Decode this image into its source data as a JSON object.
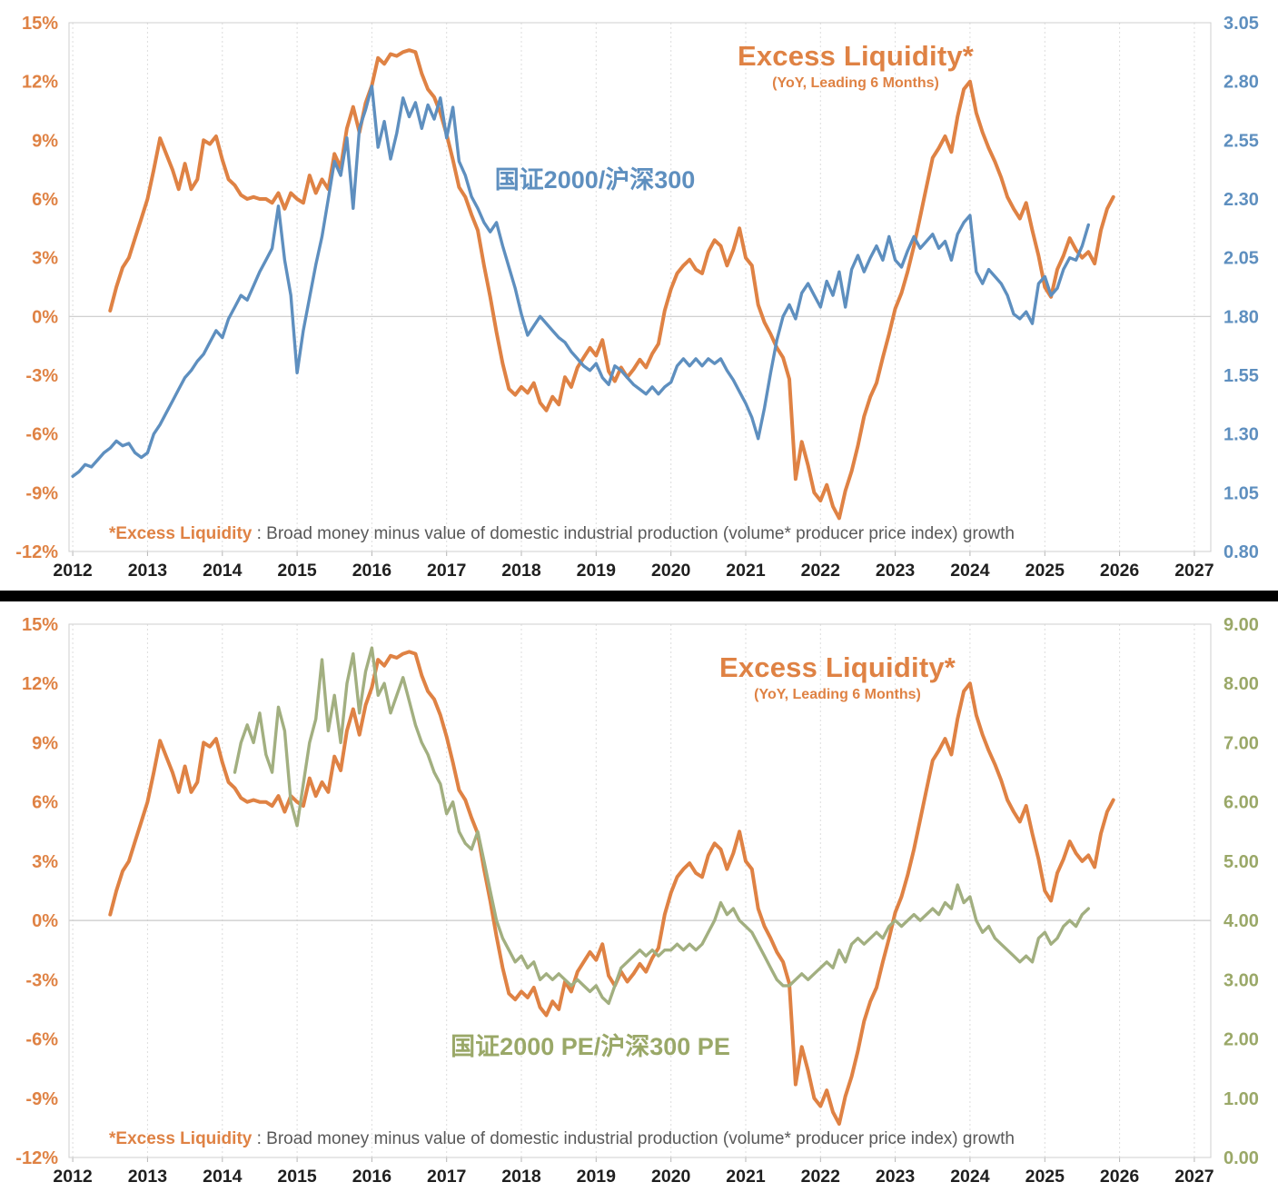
{
  "page": {
    "background": "#ffffff",
    "divider_color": "#000000"
  },
  "colors": {
    "excess_liquidity": "#DF8244",
    "price_ratio": "#5E8FBF",
    "pe_ratio": "#9AA868",
    "x_label": "#1F1F1F",
    "footnote_text": "#595959",
    "grid": "#DCDCDC"
  },
  "charts": [
    {
      "id": "price-ratio-chart",
      "title": "Excess Liquidity*",
      "subtitle": "(YoY, Leading 6 Months)",
      "series_label": "国证2000/沪深300",
      "footnote_highlight": "*Excess Liquidity",
      "footnote_text": " : Broad money minus value of domestic industrial production (volume* producer price index) growth",
      "left_ticks": [
        "15%",
        "12%",
        "9%",
        "6%",
        "3%",
        "0%",
        "-3%",
        "-6%",
        "-9%",
        "-12%"
      ],
      "right_ticks": [
        "3.05",
        "2.80",
        "2.55",
        "2.30",
        "2.05",
        "1.80",
        "1.55",
        "1.30",
        "1.05",
        "0.80"
      ],
      "x_ticks": [
        "2012",
        "2013",
        "2014",
        "2015",
        "2016",
        "2017",
        "2018",
        "2019",
        "2020",
        "2021",
        "2022",
        "2023",
        "2024",
        "2025",
        "2026",
        "2027"
      ]
    },
    {
      "id": "pe-ratio-chart",
      "title": "Excess Liquidity*",
      "subtitle": "(YoY, Leading 6 Months)",
      "series_label": "国证2000 PE/沪深300 PE",
      "footnote_highlight": "*Excess Liquidity",
      "footnote_text": " : Broad money minus value of domestic industrial production (volume* producer price index) growth",
      "left_ticks": [
        "15%",
        "12%",
        "9%",
        "6%",
        "3%",
        "0%",
        "-3%",
        "-6%",
        "-9%",
        "-12%"
      ],
      "right_ticks": [
        "9.00",
        "8.00",
        "7.00",
        "6.00",
        "5.00",
        "4.00",
        "3.00",
        "2.00",
        "1.00",
        "0.00"
      ],
      "x_ticks": [
        "2012",
        "2013",
        "2014",
        "2015",
        "2016",
        "2017",
        "2018",
        "2019",
        "2020",
        "2021",
        "2022",
        "2023",
        "2024",
        "2025",
        "2026",
        "2027"
      ]
    }
  ],
  "chart_data": [
    {
      "type": "line",
      "title": "Excess Liquidity* (YoY, Leading 6 Months) vs 国证2000/沪深300",
      "x_range": [
        2012,
        2027
      ],
      "left_axis": {
        "min": -12,
        "max": 15,
        "tick_step": 3,
        "unit": "%",
        "color": "#DF8244"
      },
      "right_axis": {
        "min": 0.8,
        "max": 3.05,
        "tick_step": 0.25,
        "color": "#5E8FBF"
      },
      "grid": "vertical-yearly-dashed",
      "legend_position": "inline-annotations",
      "series": [
        {
          "name": "Excess Liquidity* (YoY, Leading 6 Months)",
          "key": "excess-liquidity-line",
          "axis": "left",
          "color": "#DF8244",
          "x_start": 2012.5,
          "x_step_years": 0.0833333,
          "values": [
            0.3,
            1.5,
            2.5,
            3.0,
            4.0,
            5.0,
            6.0,
            7.5,
            9.1,
            8.3,
            7.5,
            6.5,
            7.8,
            6.5,
            7.0,
            9.0,
            8.8,
            9.2,
            8.0,
            7.0,
            6.7,
            6.2,
            6.0,
            6.1,
            6.0,
            6.0,
            5.8,
            6.3,
            5.5,
            6.3,
            6.0,
            5.8,
            7.2,
            6.3,
            7.0,
            6.5,
            8.3,
            7.6,
            9.6,
            10.7,
            9.4,
            10.9,
            11.8,
            13.2,
            12.9,
            13.4,
            13.3,
            13.5,
            13.6,
            13.5,
            12.4,
            11.6,
            11.2,
            10.4,
            9.3,
            8.0,
            6.6,
            6.1,
            5.2,
            4.4,
            2.6,
            1.0,
            -0.8,
            -2.4,
            -3.7,
            -4.0,
            -3.6,
            -3.9,
            -3.4,
            -4.4,
            -4.8,
            -4.1,
            -4.5,
            -3.1,
            -3.6,
            -2.6,
            -2.1,
            -1.6,
            -2.0,
            -1.2,
            -2.8,
            -3.3,
            -2.6,
            -3.1,
            -2.7,
            -2.2,
            -2.6,
            -1.9,
            -1.4,
            0.3,
            1.4,
            2.2,
            2.6,
            2.9,
            2.4,
            2.2,
            3.3,
            3.9,
            3.6,
            2.6,
            3.4,
            4.5,
            3.0,
            2.6,
            0.6,
            -0.3,
            -0.9,
            -1.6,
            -2.1,
            -3.2,
            -8.3,
            -6.4,
            -7.6,
            -9.0,
            -9.4,
            -8.6,
            -9.7,
            -10.3,
            -8.9,
            -7.9,
            -6.6,
            -5.1,
            -4.1,
            -3.4,
            -2.1,
            -0.9,
            0.4,
            1.2,
            2.3,
            3.6,
            5.1,
            6.6,
            8.1,
            8.6,
            9.2,
            8.4,
            10.2,
            11.6,
            12.0,
            10.4,
            9.4,
            8.6,
            7.9,
            7.1,
            6.1,
            5.5,
            5.0,
            5.8,
            4.4,
            3.1,
            1.5,
            1.0,
            2.4,
            3.1,
            4.0,
            3.4,
            3.0,
            3.3,
            2.7,
            4.4,
            5.5,
            6.1
          ]
        },
        {
          "name": "国证2000/沪深300",
          "key": "price-ratio-line",
          "axis": "right",
          "color": "#5E8FBF",
          "x_start": 2012.0,
          "x_step_years": 0.0833333,
          "values": [
            1.12,
            1.14,
            1.17,
            1.16,
            1.19,
            1.22,
            1.24,
            1.27,
            1.25,
            1.26,
            1.22,
            1.2,
            1.22,
            1.3,
            1.34,
            1.39,
            1.44,
            1.49,
            1.54,
            1.57,
            1.61,
            1.64,
            1.69,
            1.74,
            1.71,
            1.79,
            1.84,
            1.89,
            1.87,
            1.93,
            1.99,
            2.04,
            2.09,
            2.27,
            2.04,
            1.89,
            1.56,
            1.74,
            1.88,
            2.02,
            2.14,
            2.3,
            2.46,
            2.4,
            2.56,
            2.26,
            2.6,
            2.68,
            2.78,
            2.52,
            2.63,
            2.47,
            2.58,
            2.73,
            2.65,
            2.71,
            2.6,
            2.7,
            2.64,
            2.73,
            2.56,
            2.69,
            2.46,
            2.4,
            2.31,
            2.26,
            2.2,
            2.16,
            2.2,
            2.1,
            2.01,
            1.92,
            1.81,
            1.72,
            1.76,
            1.8,
            1.77,
            1.74,
            1.71,
            1.69,
            1.65,
            1.62,
            1.59,
            1.57,
            1.6,
            1.54,
            1.51,
            1.59,
            1.57,
            1.54,
            1.51,
            1.49,
            1.47,
            1.5,
            1.47,
            1.5,
            1.52,
            1.59,
            1.62,
            1.59,
            1.62,
            1.59,
            1.62,
            1.6,
            1.62,
            1.57,
            1.53,
            1.48,
            1.43,
            1.37,
            1.28,
            1.41,
            1.56,
            1.7,
            1.8,
            1.85,
            1.79,
            1.9,
            1.94,
            1.89,
            1.84,
            1.95,
            1.89,
            1.99,
            1.84,
            2.0,
            2.06,
            1.99,
            2.05,
            2.1,
            2.04,
            2.14,
            2.04,
            2.01,
            2.08,
            2.14,
            2.09,
            2.12,
            2.15,
            2.09,
            2.12,
            2.04,
            2.15,
            2.2,
            2.23,
            1.99,
            1.94,
            2.0,
            1.97,
            1.94,
            1.89,
            1.81,
            1.79,
            1.82,
            1.77,
            1.94,
            1.97,
            1.89,
            1.92,
            2.0,
            2.05,
            2.04,
            2.1,
            2.19
          ]
        }
      ]
    },
    {
      "type": "line",
      "title": "Excess Liquidity* (YoY, Leading 6 Months) vs 国证2000 PE/沪深300 PE",
      "x_range": [
        2012,
        2027
      ],
      "left_axis": {
        "min": -12,
        "max": 15,
        "tick_step": 3,
        "unit": "%",
        "color": "#DF8244"
      },
      "right_axis": {
        "min": 0.0,
        "max": 9.0,
        "tick_step": 1.0,
        "color": "#9AA868"
      },
      "grid": "vertical-yearly-dashed",
      "legend_position": "inline-annotations",
      "series": [
        {
          "name": "Excess Liquidity* (YoY, Leading 6 Months)",
          "key": "excess-liquidity-line",
          "axis": "left",
          "color": "#DF8244",
          "x_start": 2012.5,
          "x_step_years": 0.0833333,
          "values": [
            0.3,
            1.5,
            2.5,
            3.0,
            4.0,
            5.0,
            6.0,
            7.5,
            9.1,
            8.3,
            7.5,
            6.5,
            7.8,
            6.5,
            7.0,
            9.0,
            8.8,
            9.2,
            8.0,
            7.0,
            6.7,
            6.2,
            6.0,
            6.1,
            6.0,
            6.0,
            5.8,
            6.3,
            5.5,
            6.3,
            6.0,
            5.8,
            7.2,
            6.3,
            7.0,
            6.5,
            8.3,
            7.6,
            9.6,
            10.7,
            9.4,
            10.9,
            11.8,
            13.2,
            12.9,
            13.4,
            13.3,
            13.5,
            13.6,
            13.5,
            12.4,
            11.6,
            11.2,
            10.4,
            9.3,
            8.0,
            6.6,
            6.1,
            5.2,
            4.4,
            2.6,
            1.0,
            -0.8,
            -2.4,
            -3.7,
            -4.0,
            -3.6,
            -3.9,
            -3.4,
            -4.4,
            -4.8,
            -4.1,
            -4.5,
            -3.1,
            -3.6,
            -2.6,
            -2.1,
            -1.6,
            -2.0,
            -1.2,
            -2.8,
            -3.3,
            -2.6,
            -3.1,
            -2.7,
            -2.2,
            -2.6,
            -1.9,
            -1.4,
            0.3,
            1.4,
            2.2,
            2.6,
            2.9,
            2.4,
            2.2,
            3.3,
            3.9,
            3.6,
            2.6,
            3.4,
            4.5,
            3.0,
            2.6,
            0.6,
            -0.3,
            -0.9,
            -1.6,
            -2.1,
            -3.2,
            -8.3,
            -6.4,
            -7.6,
            -9.0,
            -9.4,
            -8.6,
            -9.7,
            -10.3,
            -8.9,
            -7.9,
            -6.6,
            -5.1,
            -4.1,
            -3.4,
            -2.1,
            -0.9,
            0.4,
            1.2,
            2.3,
            3.6,
            5.1,
            6.6,
            8.1,
            8.6,
            9.2,
            8.4,
            10.2,
            11.6,
            12.0,
            10.4,
            9.4,
            8.6,
            7.9,
            7.1,
            6.1,
            5.5,
            5.0,
            5.8,
            4.4,
            3.1,
            1.5,
            1.0,
            2.4,
            3.1,
            4.0,
            3.4,
            3.0,
            3.3,
            2.7,
            4.4,
            5.5,
            6.1
          ]
        },
        {
          "name": "国证2000 PE/沪深300 PE",
          "key": "pe-ratio-line",
          "axis": "right",
          "color": "#A2AF80",
          "x_start": 2014.1667,
          "x_step_years": 0.0833333,
          "values": [
            6.5,
            7.0,
            7.3,
            7.0,
            7.5,
            6.8,
            6.5,
            7.6,
            7.2,
            6.0,
            5.6,
            6.3,
            7.0,
            7.4,
            8.4,
            7.2,
            7.8,
            7.0,
            8.0,
            8.5,
            7.5,
            8.2,
            8.6,
            7.8,
            8.0,
            7.5,
            7.8,
            8.1,
            7.7,
            7.3,
            7.0,
            6.8,
            6.5,
            6.3,
            5.8,
            6.0,
            5.5,
            5.3,
            5.2,
            5.5,
            5.0,
            4.5,
            4.0,
            3.7,
            3.5,
            3.3,
            3.4,
            3.2,
            3.3,
            3.0,
            3.1,
            3.0,
            3.1,
            3.0,
            2.9,
            3.0,
            2.9,
            2.8,
            2.9,
            2.7,
            2.6,
            2.9,
            3.2,
            3.3,
            3.4,
            3.5,
            3.4,
            3.5,
            3.4,
            3.5,
            3.5,
            3.6,
            3.5,
            3.6,
            3.5,
            3.6,
            3.8,
            4.0,
            4.3,
            4.1,
            4.2,
            4.0,
            3.9,
            3.8,
            3.6,
            3.4,
            3.2,
            3.0,
            2.9,
            2.9,
            3.0,
            3.1,
            3.0,
            3.1,
            3.2,
            3.3,
            3.2,
            3.5,
            3.3,
            3.6,
            3.7,
            3.6,
            3.7,
            3.8,
            3.7,
            3.9,
            4.0,
            3.9,
            4.0,
            4.1,
            4.0,
            4.1,
            4.2,
            4.1,
            4.3,
            4.2,
            4.6,
            4.3,
            4.4,
            4.0,
            3.8,
            3.9,
            3.7,
            3.6,
            3.5,
            3.4,
            3.3,
            3.4,
            3.3,
            3.7,
            3.8,
            3.6,
            3.7,
            3.9,
            4.0,
            3.9,
            4.1,
            4.2
          ]
        }
      ]
    }
  ]
}
